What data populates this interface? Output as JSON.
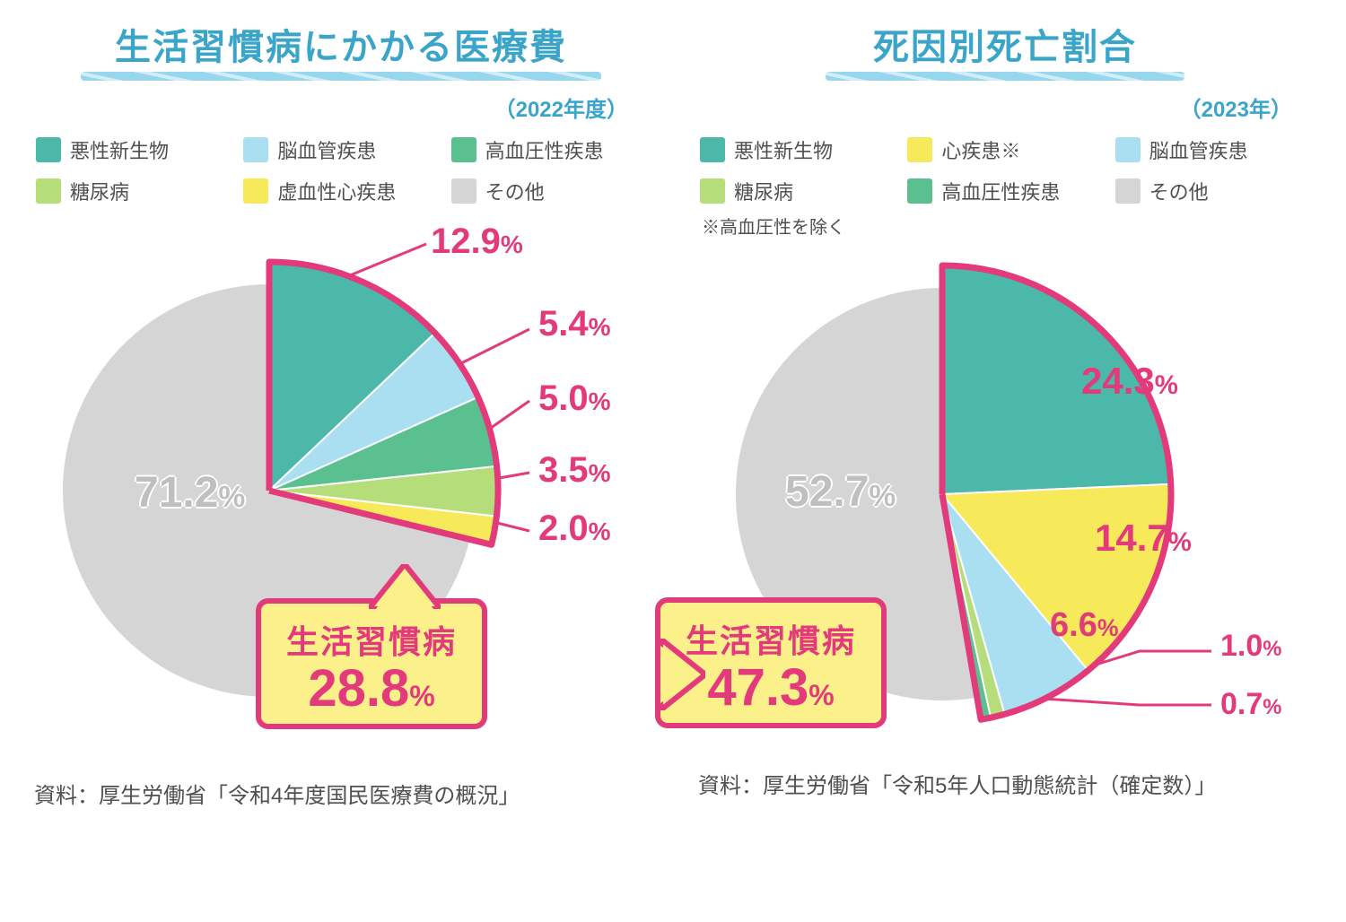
{
  "colors": {
    "teal": "#4bb8a9",
    "lightblue": "#a9dff0",
    "green": "#5bc090",
    "lightgreen": "#b5de7a",
    "yellow": "#f6e95a",
    "grey": "#d5d5d5",
    "pink": "#e23a7a",
    "title_blue": "#3aa5c9",
    "grey_text": "#bfbfbf",
    "callout_yellow": "#fbf08a"
  },
  "left": {
    "title": "生活習慣病にかかる医療費",
    "year": "（2022年度）",
    "legend": [
      {
        "label": "悪性新生物",
        "color": "#4bb8a9"
      },
      {
        "label": "脳血管疾患",
        "color": "#a9dff0"
      },
      {
        "label": "高血圧性疾患",
        "color": "#5bc090"
      },
      {
        "label": "糖尿病",
        "color": "#b5de7a"
      },
      {
        "label": "虚血性心疾患",
        "color": "#f6e95a"
      },
      {
        "label": "その他",
        "color": "#d5d5d5"
      }
    ],
    "slices": [
      {
        "key": "other",
        "value": 71.2,
        "color": "#d5d5d5",
        "label": "71.2"
      },
      {
        "key": "malignant",
        "value": 12.9,
        "color": "#4bb8a9",
        "label": "12.9"
      },
      {
        "key": "cerebro",
        "value": 5.4,
        "color": "#a9dff0",
        "label": "5.4"
      },
      {
        "key": "hyperten",
        "value": 5.0,
        "color": "#5bc090",
        "label": "5.0"
      },
      {
        "key": "diabetes",
        "value": 3.5,
        "color": "#b5de7a",
        "label": "3.5"
      },
      {
        "key": "ischemic",
        "value": 2.0,
        "color": "#f6e95a",
        "label": "2.0"
      }
    ],
    "callout_title": "生活習慣病",
    "callout_value": "28.8",
    "source": "資料：厚生労働省「令和4年度国民医療費の概況」"
  },
  "right": {
    "title": "死因別死亡割合",
    "year": "（2023年）",
    "legend": [
      {
        "label": "悪性新生物",
        "color": "#4bb8a9"
      },
      {
        "label": "心疾患※",
        "color": "#f6e95a"
      },
      {
        "label": "脳血管疾患",
        "color": "#a9dff0"
      },
      {
        "label": "糖尿病",
        "color": "#b5de7a"
      },
      {
        "label": "高血圧性疾患",
        "color": "#5bc090"
      },
      {
        "label": "その他",
        "color": "#d5d5d5"
      }
    ],
    "note": "※高血圧性を除く",
    "slices": [
      {
        "key": "other",
        "value": 52.7,
        "color": "#d5d5d5",
        "label": "52.7"
      },
      {
        "key": "malignant",
        "value": 24.3,
        "color": "#4bb8a9",
        "label": "24.3"
      },
      {
        "key": "heart",
        "value": 14.7,
        "color": "#f6e95a",
        "label": "14.7"
      },
      {
        "key": "cerebro",
        "value": 6.6,
        "color": "#a9dff0",
        "label": "6.6"
      },
      {
        "key": "diabetes",
        "value": 1.0,
        "color": "#b5de7a",
        "label": "1.0"
      },
      {
        "key": "hyperten",
        "value": 0.7,
        "color": "#5bc090",
        "label": "0.7"
      }
    ],
    "callout_title": "生活習慣病",
    "callout_value": "47.3",
    "source": "資料：厚生労働省「令和5年人口動態統計（確定数）」"
  },
  "chart_style": {
    "radius_main": 230,
    "radius_highlight": 255,
    "outline_width": 7,
    "pct_suffix": "%"
  }
}
